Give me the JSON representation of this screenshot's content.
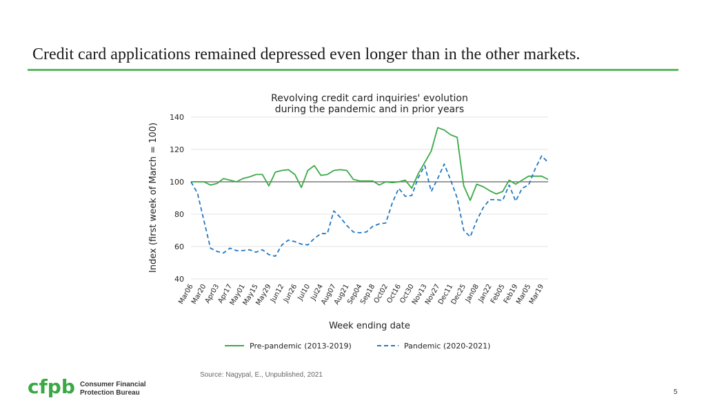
{
  "slide": {
    "title": "Credit card applications remained depressed even longer than in the other markets.",
    "source": "Source: Nagypal, E., Unpublished, 2021",
    "page_number": "5",
    "org_logo_text": "cfpb",
    "org_name_line1": "Consumer Financial",
    "org_name_line2": "Protection Bureau"
  },
  "colors": {
    "accent_green": "#3aa845",
    "title_rule": "#5cb85c",
    "pandemic_blue": "#1f77c4",
    "reference_line": "#7a7a7a"
  },
  "chart_data": {
    "type": "line",
    "title_lines": [
      "Revolving credit card inquiries' evolution",
      "during the pandemic and in prior years"
    ],
    "xlabel": "Week ending date",
    "ylabel": "Index (first week of March = 100)",
    "ylim": [
      40,
      140
    ],
    "yticks": [
      40,
      60,
      80,
      100,
      120,
      140
    ],
    "grid": true,
    "reference_value": 100,
    "categories": [
      "Mar06",
      "Mar20",
      "Apr03",
      "Apr17",
      "May01",
      "May15",
      "May29",
      "Jun12",
      "Jun26",
      "Jul10",
      "Jul24",
      "Aug07",
      "Aug21",
      "Sep04",
      "Sep18",
      "Oct02",
      "Oct16",
      "Oct30",
      "Nov13",
      "Nov27",
      "Dec11",
      "Dec25",
      "Jan08",
      "Jan22",
      "Feb05",
      "Feb19",
      "Mar05",
      "Mar19"
    ],
    "x_start": 0,
    "x_end": 55,
    "legend_position": "bottom",
    "series": [
      {
        "name": "Pre-pandemic (2013-2019)",
        "style": "solid",
        "x": [
          0,
          1,
          2,
          3,
          4,
          5,
          6,
          7,
          8,
          9,
          10,
          11,
          12,
          13,
          14,
          15,
          16,
          17,
          18,
          19,
          20,
          21,
          22,
          23,
          24,
          25,
          26,
          27,
          28,
          29,
          30,
          31,
          32,
          33,
          34,
          35,
          36,
          37,
          38,
          39,
          40,
          41,
          42,
          43,
          44,
          45,
          46,
          47,
          48,
          49,
          50,
          51,
          52,
          53,
          54,
          55
        ],
        "values": [
          100,
          100,
          100,
          98,
          99,
          102,
          101,
          100,
          102,
          103,
          104.5,
          104.5,
          97.5,
          106,
          107,
          107.5,
          104.5,
          96.5,
          107,
          110,
          104,
          104.5,
          107,
          107.5,
          107,
          101.5,
          100.5,
          100.5,
          100.5,
          98,
          100,
          99.5,
          100,
          101,
          96,
          105,
          112,
          119,
          133.5,
          132,
          129,
          127.5,
          97.5,
          88.5,
          98.5,
          97,
          94.5,
          92.5,
          94,
          101,
          98.5,
          101,
          103.5,
          103.5,
          103.5,
          101.5
        ]
      },
      {
        "name": "Pandemic (2020-2021)",
        "style": "dashed",
        "x": [
          0,
          1,
          2,
          3,
          4,
          5,
          6,
          7,
          8,
          9,
          10,
          11,
          12,
          13,
          14,
          15,
          16,
          17,
          18,
          19,
          20,
          21,
          22,
          23,
          24,
          25,
          26,
          27,
          28,
          29,
          30,
          31,
          32,
          33,
          34,
          35,
          36,
          37,
          38,
          39,
          40,
          41,
          42,
          43,
          44,
          45,
          46,
          47,
          48,
          49,
          50,
          51,
          52,
          53,
          54,
          55
        ],
        "values": [
          100,
          93,
          76,
          59,
          57,
          56,
          59,
          57.5,
          57.5,
          58,
          56.5,
          58,
          55,
          54,
          61,
          64,
          63,
          61.5,
          61,
          65,
          68,
          68,
          82,
          78,
          73,
          69,
          68.5,
          69,
          72.5,
          74,
          74.5,
          87,
          96,
          91,
          91.5,
          102.5,
          110,
          94,
          102,
          111,
          101,
          90,
          70,
          66,
          76,
          84,
          89,
          89,
          88.5,
          98,
          88,
          96,
          98,
          108,
          116,
          112
        ]
      }
    ]
  }
}
